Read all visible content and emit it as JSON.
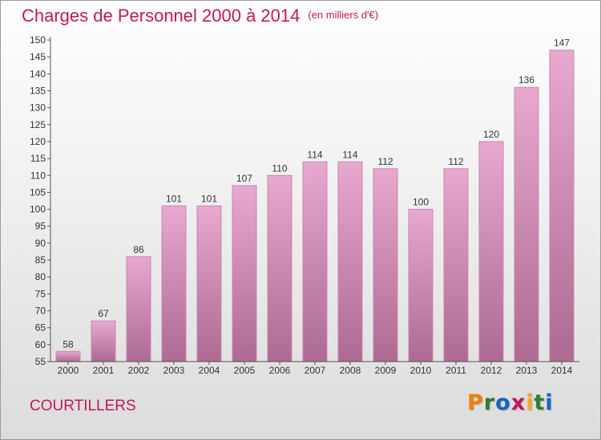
{
  "header": {
    "title": "Charges de Personnel 2000 à 2014",
    "unit": "(en milliers d'€)"
  },
  "footer": {
    "commune": "COURTILLERS",
    "logo_text": "Proxiti",
    "logo_colors": [
      "#f57c00",
      "#2e7d32",
      "#1565c0",
      "#c2185b",
      "#f9a825",
      "#2e7d32",
      "#1565c0"
    ]
  },
  "colors": {
    "title": "#c2185b",
    "bar_top": "#e8a8cf",
    "bar_bottom": "#ad6a92",
    "bar_edge": "#c788ab",
    "axis": "#555555"
  },
  "chart_data": {
    "type": "bar",
    "categories": [
      "2000",
      "2001",
      "2002",
      "2003",
      "2004",
      "2005",
      "2006",
      "2007",
      "2008",
      "2009",
      "2010",
      "2011",
      "2012",
      "2013",
      "2014"
    ],
    "values": [
      58,
      67,
      86,
      101,
      101,
      107,
      110,
      114,
      114,
      112,
      100,
      112,
      120,
      136,
      147
    ],
    "data_labels": [
      "58",
      "67",
      "86",
      "101",
      "101",
      "107",
      "110",
      "114",
      "114",
      "112",
      "100",
      "112",
      "120",
      "136",
      "147"
    ],
    "yticks": [
      "55",
      "60",
      "65",
      "70",
      "75",
      "80",
      "85",
      "90",
      "95",
      "100",
      "105",
      "110",
      "115",
      "120",
      "125",
      "130",
      "135",
      "140",
      "145",
      "150"
    ],
    "ylim": [
      55,
      150
    ],
    "grid": false,
    "legend": "none"
  }
}
